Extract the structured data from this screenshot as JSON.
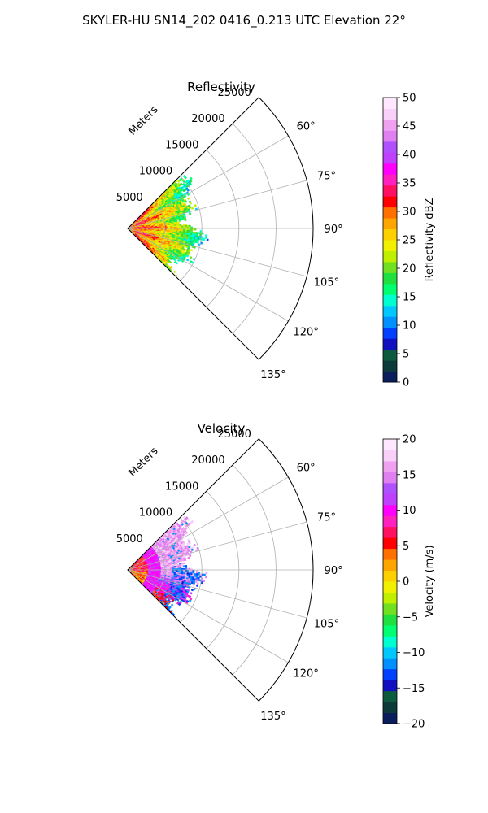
{
  "figure": {
    "suptitle": "SKYLER-HU  SN14_202  0416_0.213 UTC Elevation 22°"
  },
  "chart_data": [
    {
      "type": "polar-sector",
      "title": "Reflectivity",
      "radial_label": "Meters",
      "radial_ticks": [
        5000,
        10000,
        15000,
        20000,
        25000
      ],
      "radial_tick_labels": [
        "5000",
        "10000",
        "15000",
        "20000",
        "25000"
      ],
      "angle_ticks": [
        60,
        75,
        90,
        105,
        120,
        135
      ],
      "angle_tick_labels": [
        "60°",
        "75°",
        "90°",
        "105°",
        "120°",
        "135°"
      ],
      "theta_range_deg": [
        45,
        135
      ],
      "r_range": [
        0,
        25000
      ],
      "data_extent_m": 11000,
      "grid": true,
      "field": "reflectivity",
      "colorbar": {
        "label": "Reflectivity dBZ",
        "range": [
          0,
          50
        ],
        "ticks": [
          0,
          5,
          10,
          15,
          20,
          25,
          30,
          35,
          40,
          45,
          50
        ],
        "tick_labels": [
          "0",
          "5",
          "10",
          "15",
          "20",
          "25",
          "30",
          "35",
          "40",
          "45",
          "50"
        ],
        "colors": [
          "#0b1e5c",
          "#0c3a3a",
          "#0d5b3f",
          "#1010c0",
          "#0040ff",
          "#0090ff",
          "#00c8ff",
          "#00ffd0",
          "#00ff70",
          "#20e040",
          "#70e020",
          "#c0f000",
          "#f0f000",
          "#ffd000",
          "#ffa500",
          "#ff7000",
          "#ff0000",
          "#ff1060",
          "#ff20c0",
          "#ff00ff",
          "#c040ff",
          "#b050ff",
          "#e080f0",
          "#f0a0f0",
          "#f8d0f8",
          "#ffe8ff"
        ]
      }
    },
    {
      "type": "polar-sector",
      "title": "Velocity",
      "radial_label": "Meters",
      "radial_ticks": [
        5000,
        10000,
        15000,
        20000,
        25000
      ],
      "radial_tick_labels": [
        "5000",
        "10000",
        "15000",
        "20000",
        "25000"
      ],
      "angle_ticks": [
        60,
        75,
        90,
        105,
        120,
        135
      ],
      "angle_tick_labels": [
        "60°",
        "75°",
        "90°",
        "105°",
        "120°",
        "135°"
      ],
      "theta_range_deg": [
        45,
        135
      ],
      "r_range": [
        0,
        25000
      ],
      "data_extent_m": 11000,
      "grid": true,
      "field": "velocity",
      "colorbar": {
        "label": "Velocity (m/s)",
        "range": [
          -20,
          20
        ],
        "ticks": [
          -20,
          -15,
          -10,
          -5,
          0,
          5,
          10,
          15,
          20
        ],
        "tick_labels": [
          "−20",
          "−15",
          "−10",
          "−5",
          "0",
          "5",
          "10",
          "15",
          "20"
        ],
        "colors": [
          "#0b1e5c",
          "#0c3a3a",
          "#0d5b3f",
          "#1010c0",
          "#0040ff",
          "#0090ff",
          "#00c8ff",
          "#00ffd0",
          "#00ff70",
          "#20e040",
          "#70e020",
          "#c0f000",
          "#f0f000",
          "#ffd000",
          "#ffa500",
          "#ff7000",
          "#ff0000",
          "#ff1060",
          "#ff20c0",
          "#ff00ff",
          "#c040ff",
          "#b050ff",
          "#e080f0",
          "#f0a0f0",
          "#f8d0f8",
          "#ffe8ff"
        ]
      }
    }
  ]
}
